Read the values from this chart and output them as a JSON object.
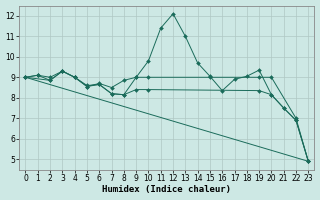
{
  "xlabel": "Humidex (Indice chaleur)",
  "ylabel": "",
  "bg_color": "#cde8e4",
  "grid_color": "#b0c8c4",
  "line_color": "#1a6b5a",
  "xlim": [
    -0.5,
    23.5
  ],
  "ylim": [
    4.5,
    12.5
  ],
  "xticks": [
    0,
    1,
    2,
    3,
    4,
    5,
    6,
    7,
    8,
    9,
    10,
    11,
    12,
    13,
    14,
    15,
    16,
    17,
    18,
    19,
    20,
    21,
    22,
    23
  ],
  "yticks": [
    5,
    6,
    7,
    8,
    9,
    10,
    11,
    12
  ],
  "series": [
    {
      "x": [
        0,
        1,
        2,
        3,
        4,
        5,
        6,
        7,
        8,
        9,
        10,
        11,
        12,
        13,
        14,
        15,
        16,
        17,
        18,
        19,
        20,
        21,
        22,
        23
      ],
      "y": [
        9.0,
        9.1,
        9.0,
        9.3,
        9.0,
        8.55,
        8.65,
        8.2,
        8.15,
        9.0,
        9.8,
        11.4,
        12.1,
        11.0,
        9.7,
        9.05,
        8.35,
        8.9,
        9.05,
        9.35,
        8.15,
        7.5,
        6.9,
        4.9
      ],
      "markers": true
    },
    {
      "x": [
        0,
        1,
        2,
        3,
        4,
        5,
        6,
        7,
        8,
        9,
        10,
        15,
        19,
        20,
        22,
        23
      ],
      "y": [
        9.0,
        9.1,
        8.85,
        9.3,
        9.0,
        8.55,
        8.7,
        8.5,
        8.85,
        9.0,
        9.0,
        9.0,
        9.0,
        9.0,
        7.0,
        4.9
      ],
      "markers": true
    },
    {
      "x": [
        0,
        2,
        3,
        4,
        5,
        6,
        7,
        8,
        9,
        10,
        19,
        20,
        21,
        22,
        23
      ],
      "y": [
        9.0,
        8.85,
        9.3,
        9.0,
        8.6,
        8.65,
        8.2,
        8.15,
        8.4,
        8.4,
        8.35,
        8.15,
        7.5,
        6.9,
        4.9
      ],
      "markers": true
    },
    {
      "x": [
        0,
        23
      ],
      "y": [
        9.0,
        4.9
      ],
      "markers": false
    }
  ]
}
